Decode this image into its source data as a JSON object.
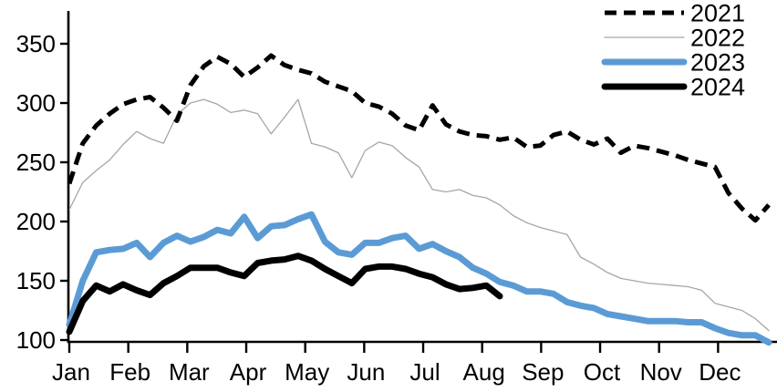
{
  "chart_data": {
    "type": "line",
    "title": "",
    "x_axis": {
      "tick_labels": [
        "Jan",
        "Feb",
        "Mar",
        "Apr",
        "May",
        "Jun",
        "Jul",
        "Aug",
        "Sep",
        "Oct",
        "Nov",
        "Dec"
      ],
      "resolution": "weekly points (~4.3 per month)"
    },
    "y_axis": {
      "ticks": [
        100,
        150,
        200,
        250,
        300,
        350
      ],
      "range": [
        100,
        365
      ],
      "grid": false
    },
    "legend": {
      "position": "top-right",
      "entries": [
        "2021",
        "2022",
        "2023",
        "2024"
      ]
    },
    "colors": {
      "axis": "#000000",
      "series_2021": "#000000",
      "series_2022": "#a6a6a6",
      "series_2023": "#5b9bd5",
      "series_2024": "#000000",
      "background": "#ffffff"
    },
    "series": [
      {
        "name": "2021",
        "color": "#000000",
        "line_style": "dashed",
        "line_width": 5,
        "values": [
          232,
          266,
          281,
          291,
          299,
          303,
          305,
          296,
          285,
          315,
          331,
          339,
          333,
          322,
          330,
          340,
          332,
          328,
          325,
          318,
          314,
          310,
          300,
          297,
          291,
          281,
          277,
          298,
          282,
          276,
          273,
          272,
          269,
          271,
          263,
          264,
          273,
          276,
          269,
          265,
          270,
          258,
          264,
          262,
          259,
          256,
          252,
          249,
          246,
          224,
          211,
          201,
          214
        ]
      },
      {
        "name": "2022",
        "color": "#a6a6a6",
        "line_style": "solid",
        "line_width": 1.3,
        "values": [
          210,
          233,
          243,
          252,
          265,
          276,
          270,
          266,
          290,
          300,
          303,
          299,
          292,
          294,
          291,
          274,
          288,
          303,
          266,
          263,
          258,
          237,
          260,
          267,
          264,
          254,
          246,
          227,
          225,
          227,
          222,
          220,
          214,
          205,
          199,
          195,
          192,
          189,
          170,
          164,
          157,
          152,
          150,
          148,
          147,
          146,
          145,
          142,
          131,
          128,
          125,
          118,
          108
        ]
      },
      {
        "name": "2023",
        "color": "#5b9bd5",
        "line_style": "solid",
        "line_width": 7,
        "values": [
          113,
          150,
          174,
          176,
          177,
          182,
          170,
          182,
          188,
          183,
          187,
          193,
          190,
          204,
          186,
          196,
          197,
          202,
          206,
          183,
          174,
          172,
          182,
          182,
          186,
          188,
          177,
          181,
          175,
          170,
          161,
          156,
          149,
          146,
          141,
          141,
          139,
          132,
          129,
          127,
          122,
          120,
          118,
          116,
          116,
          116,
          115,
          115,
          110,
          106,
          104,
          104,
          98
        ]
      },
      {
        "name": "2024",
        "color": "#000000",
        "line_style": "solid",
        "line_width": 7,
        "values": [
          107,
          133,
          146,
          141,
          147,
          142,
          138,
          148,
          154,
          161,
          161,
          161,
          157,
          154,
          165,
          167,
          168,
          171,
          167,
          160,
          154,
          148,
          160,
          162,
          162,
          160,
          156,
          153,
          147,
          143,
          144,
          146,
          137
        ]
      }
    ]
  }
}
